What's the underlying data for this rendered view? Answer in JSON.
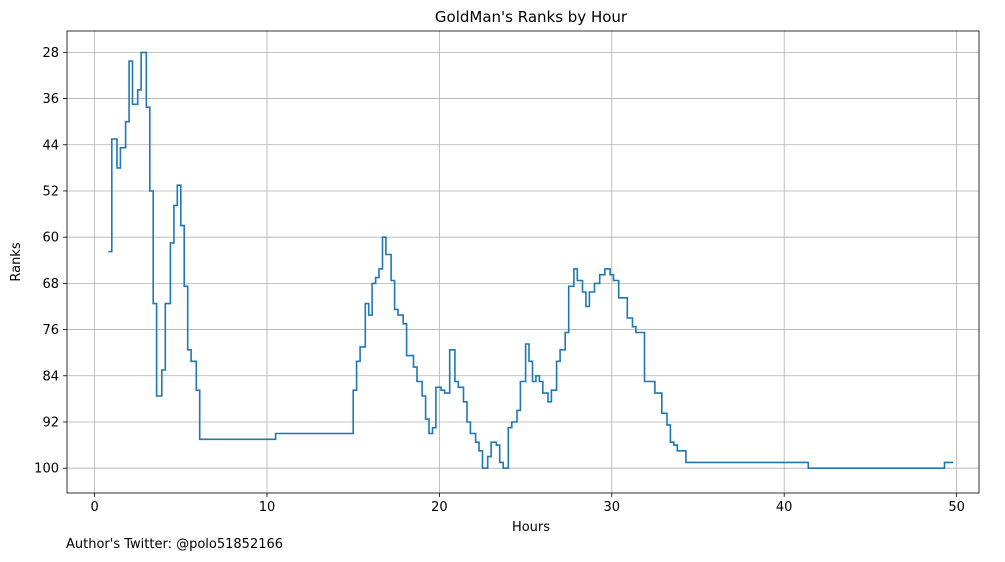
{
  "chart_data": {
    "type": "line",
    "step": "post",
    "title": "GoldMan's Ranks by Hour",
    "xlabel": "Hours",
    "ylabel": "Ranks",
    "xlim": [
      -1.6,
      51.3
    ],
    "ylim": [
      104.3,
      24.3
    ],
    "y_inverted": true,
    "grid": true,
    "color": "#1f77b4",
    "xticks": [
      0,
      10,
      20,
      30,
      40,
      50
    ],
    "yticks": [
      28,
      36,
      44,
      52,
      60,
      68,
      76,
      84,
      92,
      100
    ],
    "series": [
      {
        "x": [
          0.8,
          1.0,
          1.3,
          1.5,
          1.8,
          2.0,
          2.2,
          2.5,
          2.7,
          3.0,
          3.2,
          3.4,
          3.6,
          3.9,
          4.1,
          4.4,
          4.6,
          4.8,
          5.0,
          5.2,
          5.4,
          5.6,
          5.9,
          6.1,
          6.4,
          10.5,
          14.7,
          15.0,
          15.2,
          15.4,
          15.7,
          15.9,
          16.1,
          16.3,
          16.5,
          16.7,
          16.9,
          17.2,
          17.4,
          17.6,
          17.9,
          18.1,
          18.5,
          18.7,
          19.0,
          19.2,
          19.4,
          19.6,
          19.8,
          20.1,
          20.3,
          20.6,
          20.9,
          21.1,
          21.4,
          21.6,
          21.8,
          22.1,
          22.3,
          22.5,
          22.8,
          23.0,
          23.3,
          23.5,
          23.7,
          24.0,
          24.2,
          24.5,
          24.7,
          25.0,
          25.2,
          25.4,
          25.6,
          25.8,
          26.0,
          26.3,
          26.5,
          26.8,
          27.0,
          27.3,
          27.5,
          27.8,
          28.0,
          28.3,
          28.5,
          28.7,
          29.0,
          29.3,
          29.6,
          29.9,
          30.1,
          30.4,
          30.7,
          30.9,
          31.2,
          31.4,
          31.9,
          32.0,
          32.5,
          32.9,
          33.2,
          33.4,
          33.6,
          33.8,
          34.3,
          34.6,
          41.4,
          49.3,
          49.8
        ],
        "y": [
          62.5,
          43.0,
          48.0,
          44.5,
          40.0,
          29.5,
          37.0,
          34.5,
          28.0,
          37.5,
          52.0,
          71.5,
          87.5,
          83.0,
          71.5,
          61.0,
          54.5,
          51.0,
          58.0,
          68.5,
          79.5,
          81.5,
          86.5,
          95.0,
          95.0,
          94.0,
          94.0,
          86.5,
          81.5,
          79.0,
          71.5,
          73.5,
          68.0,
          67.0,
          65.5,
          60.0,
          63.0,
          67.5,
          72.5,
          73.5,
          75.0,
          80.5,
          82.5,
          85.0,
          87.5,
          91.5,
          94.0,
          93.0,
          86.0,
          86.5,
          87.0,
          79.5,
          85.0,
          86.0,
          88.5,
          92.0,
          94.0,
          95.5,
          97.0,
          100.0,
          98.0,
          95.5,
          96.0,
          99.0,
          100.0,
          93.0,
          92.0,
          90.0,
          85.0,
          78.5,
          81.5,
          85.0,
          84.0,
          85.0,
          87.0,
          88.5,
          86.5,
          81.5,
          79.5,
          76.5,
          68.5,
          65.5,
          67.5,
          69.5,
          72.0,
          69.5,
          68.0,
          66.5,
          65.5,
          66.5,
          67.5,
          70.5,
          70.5,
          74.0,
          75.5,
          76.5,
          85.0,
          85.0,
          87.0,
          90.5,
          92.5,
          95.5,
          96.0,
          97.0,
          99.0,
          99.0,
          100.0,
          99.0,
          99.0
        ]
      }
    ]
  },
  "footnote": "Author's Twitter: @polo51852166"
}
